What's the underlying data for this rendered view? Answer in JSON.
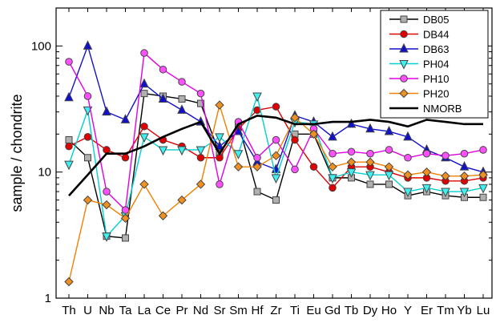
{
  "chart_data": {
    "type": "line",
    "ylabel": "sample / chondrite",
    "xlabel": "",
    "yscale": "log",
    "ylim": [
      1,
      200
    ],
    "yticks": [
      1,
      10,
      100
    ],
    "ytick_labels": [
      "1",
      "10",
      "100"
    ],
    "categories": [
      "Th",
      "U",
      "Nb",
      "Ta",
      "La",
      "Ce",
      "Pr",
      "Nd",
      "Sr",
      "Sm",
      "Hf",
      "Zr",
      "Ti",
      "Eu",
      "Gd",
      "Tb",
      "Dy",
      "Ho",
      "Y",
      "Er",
      "Tm",
      "Yb",
      "Lu"
    ],
    "legend_position": "top-right",
    "grid": false,
    "series": [
      {
        "name": "DB05",
        "color": "#000000",
        "fill": "#b0b0b0",
        "marker": "square",
        "values": [
          18,
          13,
          3.1,
          3.0,
          42,
          40,
          38,
          35,
          14,
          24,
          7,
          6,
          20,
          20,
          9,
          9,
          8,
          8,
          6.5,
          7,
          6.5,
          6.3,
          6.3
        ]
      },
      {
        "name": "DB44",
        "color": "#e00000",
        "fill": "#e00000",
        "marker": "circle",
        "values": [
          16,
          19,
          15,
          13,
          23,
          18,
          16,
          13,
          13,
          22,
          31,
          33,
          18,
          11,
          7.5,
          11,
          11,
          10,
          9,
          9,
          8.5,
          8.5,
          9
        ]
      },
      {
        "name": "DB63",
        "color": "#1010cc",
        "fill": "#1010cc",
        "marker": "triangle",
        "values": [
          39,
          100,
          30,
          26,
          50,
          38,
          31,
          25,
          16,
          21,
          12,
          10.5,
          28,
          25,
          19,
          24,
          22,
          21,
          19,
          15,
          13,
          11,
          10
        ]
      },
      {
        "name": "PH04",
        "color": "#00d0d0",
        "fill": "#40f0f0",
        "marker": "triangle-down",
        "values": [
          11.5,
          31,
          3.1,
          4.5,
          19,
          15,
          15,
          15,
          19,
          14,
          40,
          9,
          25,
          24,
          9,
          10,
          9.5,
          9.5,
          7,
          7.5,
          7,
          7,
          7.5
        ]
      },
      {
        "name": "PH10",
        "color": "#e000e0",
        "fill": "#ff50ff",
        "marker": "circle",
        "values": [
          75,
          40,
          7,
          5,
          88,
          65,
          52,
          42,
          8,
          25,
          13,
          18,
          10.5,
          22,
          14,
          14.5,
          14,
          15,
          13,
          14,
          13.5,
          14,
          15
        ]
      },
      {
        "name": "PH20",
        "color": "#f08000",
        "fill": "#f09020",
        "marker": "diamond",
        "values": [
          1.35,
          6,
          5.5,
          4.3,
          8,
          4.5,
          6,
          8,
          34,
          11,
          11,
          13.5,
          27,
          20,
          11,
          12,
          12,
          11,
          9.5,
          10,
          9.3,
          9.3,
          9.5
        ]
      },
      {
        "name": "NMORB",
        "color": "#000000",
        "fill": "none",
        "marker": "none",
        "values": [
          6.5,
          9.5,
          14,
          14,
          16,
          19,
          22,
          25,
          14,
          24,
          28,
          27,
          24,
          24,
          25,
          25,
          26,
          25,
          23,
          26,
          25,
          24,
          24
        ]
      }
    ]
  }
}
